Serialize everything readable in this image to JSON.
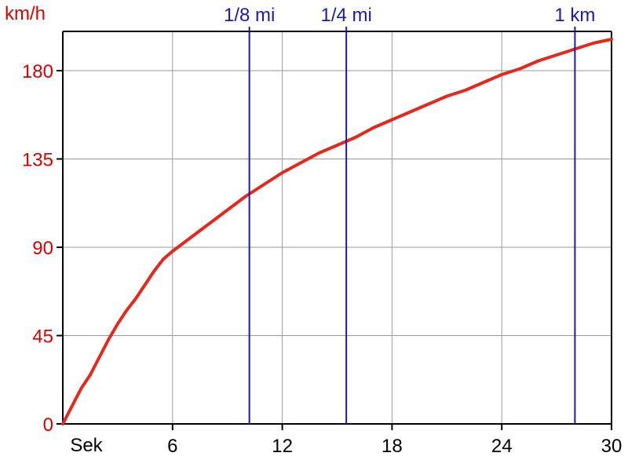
{
  "chart_data": {
    "type": "line",
    "title": "",
    "xlabel": "Sek",
    "ylabel": "km/h",
    "xlim": [
      0,
      30
    ],
    "ylim": [
      0,
      200
    ],
    "x_ticks": [
      6,
      12,
      18,
      24,
      30
    ],
    "y_ticks": [
      0,
      45,
      90,
      135,
      180
    ],
    "grid": true,
    "colors": {
      "series": "#e8271c",
      "markers": "#1a1ab0",
      "y_text": "#dd0000",
      "axis": "#000000",
      "grid": "#999999"
    },
    "series": [
      {
        "x": [
          0,
          0.5,
          1,
          1.5,
          2,
          2.5,
          3,
          3.5,
          4,
          4.5,
          5,
          5.5,
          6,
          7,
          8,
          9,
          10,
          11,
          12,
          13,
          14,
          15,
          16,
          17,
          18,
          19,
          20,
          21,
          22,
          23,
          24,
          25,
          26,
          27,
          28,
          29,
          30
        ],
        "values": [
          0,
          9,
          18,
          25,
          34,
          43,
          51,
          58,
          64,
          71,
          78,
          84,
          88,
          95,
          102,
          109,
          116,
          122,
          128,
          133,
          138,
          142,
          146,
          151,
          155,
          159,
          163,
          167,
          170,
          174,
          178,
          181,
          185,
          188,
          191,
          194,
          196
        ]
      }
    ],
    "markers": [
      {
        "label": "1/8 mi",
        "x": 10.2
      },
      {
        "label": "1/4 mi",
        "x": 15.5
      },
      {
        "label": "1 km",
        "x": 28.0
      }
    ]
  }
}
